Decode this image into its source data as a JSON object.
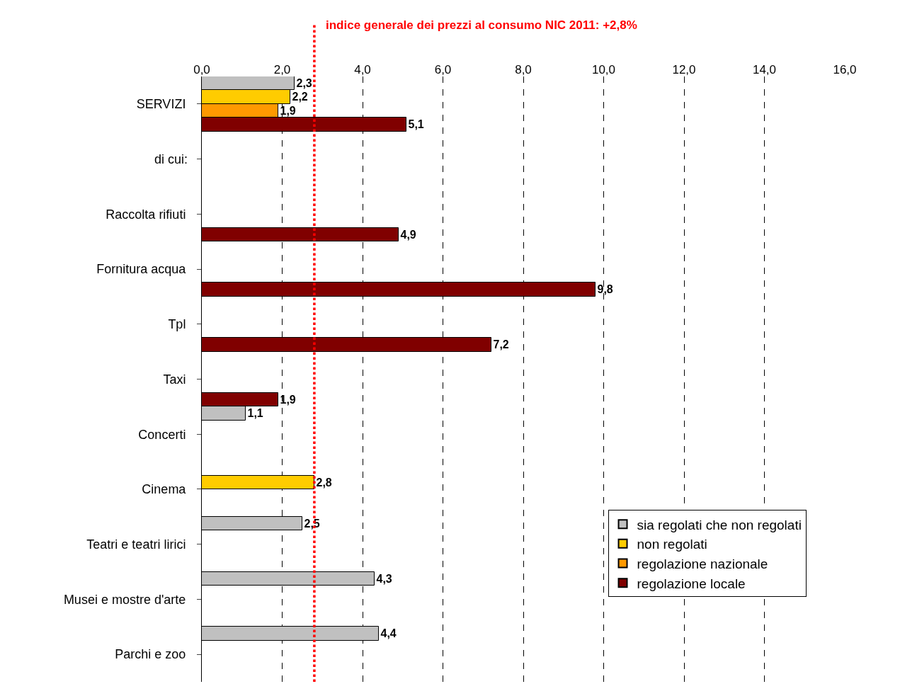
{
  "chart_data": {
    "type": "bar",
    "orientation": "horizontal",
    "categories": [
      "SERVIZI",
      null,
      "Raccolta rifiuti",
      "Fornitura acqua",
      "Tpl",
      "Taxi",
      "Concerti",
      "Cinema",
      "Teatri e teatri lirici",
      "Musei e mostre d'arte",
      "Parchi e zoo"
    ],
    "series": [
      {
        "name": "sia regolati che non regolati",
        "color": "#c0c0c0",
        "values": [
          2.3,
          null,
          null,
          null,
          null,
          null,
          1.1,
          null,
          2.5,
          4.3,
          4.4
        ],
        "value_labels": [
          "2,3",
          null,
          null,
          null,
          null,
          null,
          "1,1",
          null,
          "2,5",
          "4,3",
          "4,4"
        ]
      },
      {
        "name": "non regolati",
        "color": "#ffcc00",
        "values": [
          2.2,
          null,
          null,
          null,
          null,
          null,
          null,
          2.8,
          null,
          null,
          null
        ],
        "value_labels": [
          "2,2",
          null,
          null,
          null,
          null,
          null,
          null,
          "2,8",
          null,
          null,
          null
        ]
      },
      {
        "name": "regolazione nazionale",
        "color": "#ff9900",
        "values": [
          1.9,
          null,
          null,
          null,
          null,
          null,
          null,
          null,
          null,
          null,
          null
        ],
        "value_labels": [
          "1,9",
          null,
          null,
          null,
          null,
          null,
          null,
          null,
          null,
          null,
          null
        ]
      },
      {
        "name": "regolazione locale",
        "color": "#800000",
        "values": [
          5.1,
          null,
          4.9,
          9.8,
          7.2,
          1.9,
          null,
          null,
          null,
          null,
          null
        ],
        "value_labels": [
          "5,1",
          null,
          "4,9",
          "9,8",
          "7,2",
          "1,9",
          null,
          null,
          null,
          null,
          null
        ]
      }
    ],
    "xlim": [
      0,
      16
    ],
    "xticks": [
      {
        "value": 0,
        "label": "0,0"
      },
      {
        "value": 2,
        "label": "2,0"
      },
      {
        "value": 4,
        "label": "4,0"
      },
      {
        "value": 6,
        "label": "6,0"
      },
      {
        "value": 8,
        "label": "8,0"
      },
      {
        "value": 10,
        "label": "10,0"
      },
      {
        "value": 12,
        "label": "12,0"
      },
      {
        "value": 14,
        "label": "14,0"
      },
      {
        "value": 16,
        "label": "16,0"
      }
    ],
    "ref_lines": [
      {
        "axis": "x",
        "value": 2.8,
        "label": "indice generale dei prezzi al consumo NIC 2011: +2,8%",
        "color": "#ff0000",
        "line_style": "dotted"
      }
    ],
    "annotations": [
      "di cui:"
    ],
    "grid": "x",
    "legend": "bottom right"
  }
}
